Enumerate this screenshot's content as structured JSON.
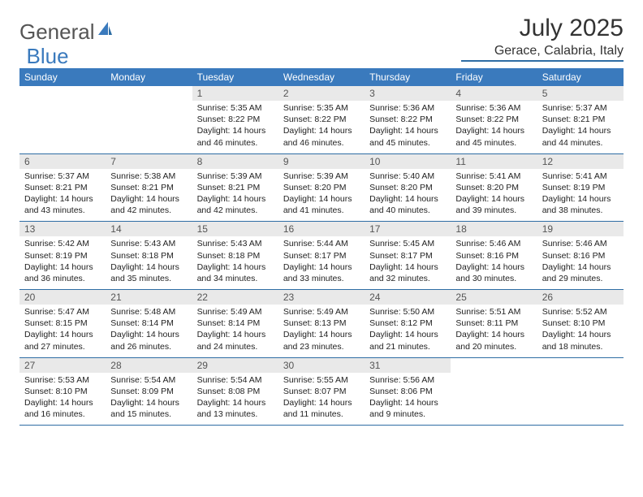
{
  "brand": {
    "part1": "General",
    "part2": "Blue"
  },
  "title": "July 2025",
  "location": "Gerace, Calabria, Italy",
  "colors": {
    "header_bg": "#3a7abd",
    "header_text": "#ffffff",
    "daynum_bg": "#e9e9e9",
    "rule": "#2e6da4",
    "body_text": "#222222",
    "muted": "#555555",
    "background": "#ffffff"
  },
  "day_names": [
    "Sunday",
    "Monday",
    "Tuesday",
    "Wednesday",
    "Thursday",
    "Friday",
    "Saturday"
  ],
  "weeks": [
    [
      null,
      null,
      {
        "n": "1",
        "sr": "5:35 AM",
        "ss": "8:22 PM",
        "dl": "14 hours and 46 minutes."
      },
      {
        "n": "2",
        "sr": "5:35 AM",
        "ss": "8:22 PM",
        "dl": "14 hours and 46 minutes."
      },
      {
        "n": "3",
        "sr": "5:36 AM",
        "ss": "8:22 PM",
        "dl": "14 hours and 45 minutes."
      },
      {
        "n": "4",
        "sr": "5:36 AM",
        "ss": "8:22 PM",
        "dl": "14 hours and 45 minutes."
      },
      {
        "n": "5",
        "sr": "5:37 AM",
        "ss": "8:21 PM",
        "dl": "14 hours and 44 minutes."
      }
    ],
    [
      {
        "n": "6",
        "sr": "5:37 AM",
        "ss": "8:21 PM",
        "dl": "14 hours and 43 minutes."
      },
      {
        "n": "7",
        "sr": "5:38 AM",
        "ss": "8:21 PM",
        "dl": "14 hours and 42 minutes."
      },
      {
        "n": "8",
        "sr": "5:39 AM",
        "ss": "8:21 PM",
        "dl": "14 hours and 42 minutes."
      },
      {
        "n": "9",
        "sr": "5:39 AM",
        "ss": "8:20 PM",
        "dl": "14 hours and 41 minutes."
      },
      {
        "n": "10",
        "sr": "5:40 AM",
        "ss": "8:20 PM",
        "dl": "14 hours and 40 minutes."
      },
      {
        "n": "11",
        "sr": "5:41 AM",
        "ss": "8:20 PM",
        "dl": "14 hours and 39 minutes."
      },
      {
        "n": "12",
        "sr": "5:41 AM",
        "ss": "8:19 PM",
        "dl": "14 hours and 38 minutes."
      }
    ],
    [
      {
        "n": "13",
        "sr": "5:42 AM",
        "ss": "8:19 PM",
        "dl": "14 hours and 36 minutes."
      },
      {
        "n": "14",
        "sr": "5:43 AM",
        "ss": "8:18 PM",
        "dl": "14 hours and 35 minutes."
      },
      {
        "n": "15",
        "sr": "5:43 AM",
        "ss": "8:18 PM",
        "dl": "14 hours and 34 minutes."
      },
      {
        "n": "16",
        "sr": "5:44 AM",
        "ss": "8:17 PM",
        "dl": "14 hours and 33 minutes."
      },
      {
        "n": "17",
        "sr": "5:45 AM",
        "ss": "8:17 PM",
        "dl": "14 hours and 32 minutes."
      },
      {
        "n": "18",
        "sr": "5:46 AM",
        "ss": "8:16 PM",
        "dl": "14 hours and 30 minutes."
      },
      {
        "n": "19",
        "sr": "5:46 AM",
        "ss": "8:16 PM",
        "dl": "14 hours and 29 minutes."
      }
    ],
    [
      {
        "n": "20",
        "sr": "5:47 AM",
        "ss": "8:15 PM",
        "dl": "14 hours and 27 minutes."
      },
      {
        "n": "21",
        "sr": "5:48 AM",
        "ss": "8:14 PM",
        "dl": "14 hours and 26 minutes."
      },
      {
        "n": "22",
        "sr": "5:49 AM",
        "ss": "8:14 PM",
        "dl": "14 hours and 24 minutes."
      },
      {
        "n": "23",
        "sr": "5:49 AM",
        "ss": "8:13 PM",
        "dl": "14 hours and 23 minutes."
      },
      {
        "n": "24",
        "sr": "5:50 AM",
        "ss": "8:12 PM",
        "dl": "14 hours and 21 minutes."
      },
      {
        "n": "25",
        "sr": "5:51 AM",
        "ss": "8:11 PM",
        "dl": "14 hours and 20 minutes."
      },
      {
        "n": "26",
        "sr": "5:52 AM",
        "ss": "8:10 PM",
        "dl": "14 hours and 18 minutes."
      }
    ],
    [
      {
        "n": "27",
        "sr": "5:53 AM",
        "ss": "8:10 PM",
        "dl": "14 hours and 16 minutes."
      },
      {
        "n": "28",
        "sr": "5:54 AM",
        "ss": "8:09 PM",
        "dl": "14 hours and 15 minutes."
      },
      {
        "n": "29",
        "sr": "5:54 AM",
        "ss": "8:08 PM",
        "dl": "14 hours and 13 minutes."
      },
      {
        "n": "30",
        "sr": "5:55 AM",
        "ss": "8:07 PM",
        "dl": "14 hours and 11 minutes."
      },
      {
        "n": "31",
        "sr": "5:56 AM",
        "ss": "8:06 PM",
        "dl": "14 hours and 9 minutes."
      },
      null,
      null
    ]
  ],
  "labels": {
    "sunrise": "Sunrise:",
    "sunset": "Sunset:",
    "daylight": "Daylight:"
  }
}
